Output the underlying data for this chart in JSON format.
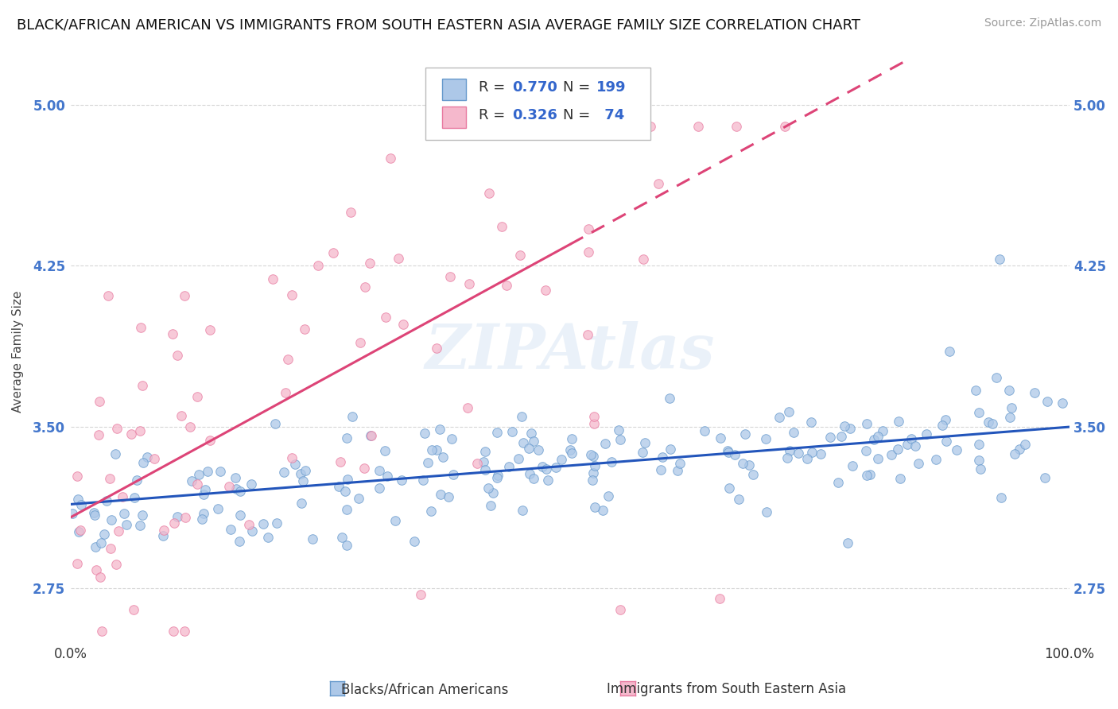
{
  "title": "BLACK/AFRICAN AMERICAN VS IMMIGRANTS FROM SOUTH EASTERN ASIA AVERAGE FAMILY SIZE CORRELATION CHART",
  "source": "Source: ZipAtlas.com",
  "ylabel": "Average Family Size",
  "yticks": [
    2.75,
    3.5,
    4.25,
    5.0
  ],
  "xlim": [
    0.0,
    100.0
  ],
  "ylim": [
    2.5,
    5.2
  ],
  "blue_R": 0.77,
  "blue_N": 199,
  "pink_R": 0.326,
  "pink_N": 74,
  "blue_color": "#adc8e8",
  "blue_edge": "#6699cc",
  "pink_color": "#f5b8cc",
  "pink_edge": "#e87aa0",
  "blue_trend_color": "#2255bb",
  "pink_trend_color": "#dd4477",
  "legend_label_blue": "Blacks/African Americans",
  "legend_label_pink": "Immigrants from South Eastern Asia",
  "title_fontsize": 13,
  "axis_tick_color": "#4477cc",
  "watermark": "ZIPAtlas",
  "background_color": "#ffffff",
  "grid_color": "#cccccc",
  "blue_trend_start_y": 3.14,
  "blue_trend_end_y": 3.5,
  "pink_trend_start_y": 3.08,
  "pink_trend_end_y": 4.35
}
